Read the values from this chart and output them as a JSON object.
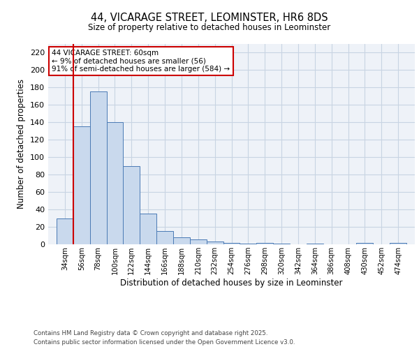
{
  "title1": "44, VICARAGE STREET, LEOMINSTER, HR6 8DS",
  "title2": "Size of property relative to detached houses in Leominster",
  "xlabel": "Distribution of detached houses by size in Leominster",
  "ylabel": "Number of detached properties",
  "bar_edges": [
    34,
    56,
    78,
    100,
    122,
    144,
    166,
    188,
    210,
    232,
    254,
    276,
    298,
    320,
    342,
    364,
    386,
    408,
    430,
    452,
    474
  ],
  "bar_heights": [
    30,
    135,
    175,
    140,
    90,
    35,
    15,
    8,
    6,
    3,
    2,
    1,
    2,
    1,
    0,
    1,
    0,
    0,
    2,
    0,
    2
  ],
  "bar_color": "#c9d9ed",
  "bar_edge_color": "#4a7ab5",
  "grid_color": "#c8d4e3",
  "bg_color": "#eef2f8",
  "vline_x": 56,
  "vline_color": "#cc0000",
  "annotation_box_text": "44 VICARAGE STREET: 60sqm\n← 9% of detached houses are smaller (56)\n91% of semi-detached houses are larger (584) →",
  "ylim": [
    0,
    230
  ],
  "yticks": [
    0,
    20,
    40,
    60,
    80,
    100,
    120,
    140,
    160,
    180,
    200,
    220
  ],
  "footnote1": "Contains HM Land Registry data © Crown copyright and database right 2025.",
  "footnote2": "Contains public sector information licensed under the Open Government Licence v3.0.",
  "bar_labels": [
    "34sqm",
    "56sqm",
    "78sqm",
    "100sqm",
    "122sqm",
    "144sqm",
    "166sqm",
    "188sqm",
    "210sqm",
    "232sqm",
    "254sqm",
    "276sqm",
    "298sqm",
    "320sqm",
    "342sqm",
    "364sqm",
    "386sqm",
    "408sqm",
    "430sqm",
    "452sqm",
    "474sqm"
  ]
}
